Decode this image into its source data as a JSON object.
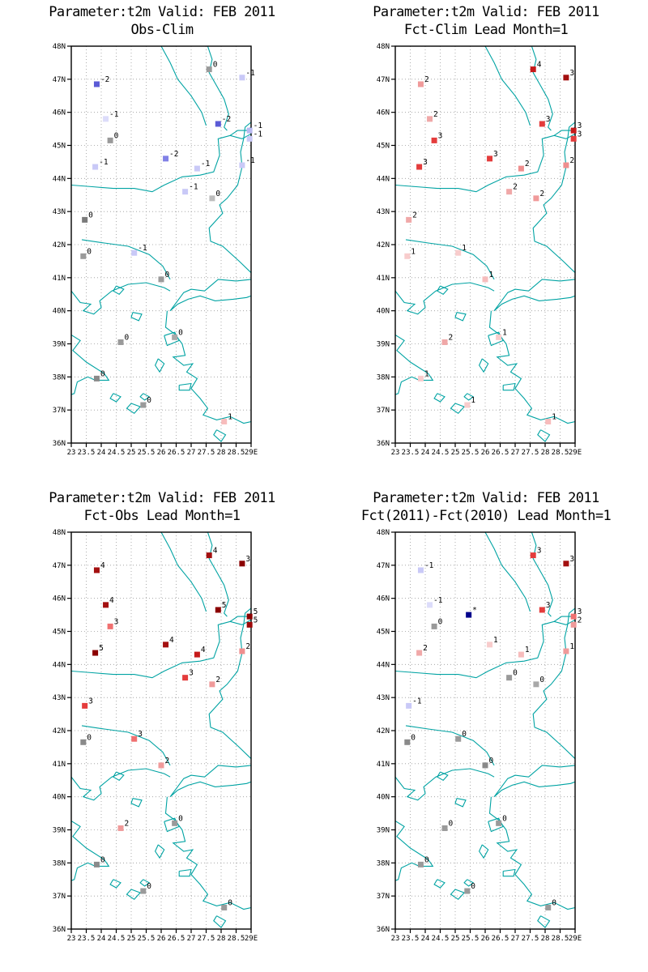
{
  "figure": {
    "background": "#ffffff",
    "map_line_color": "#00a3a3",
    "grid_color": "#999999",
    "frame_color": "#000000"
  },
  "axes": {
    "y_ticks": [
      "48N",
      "47N",
      "46N",
      "45N",
      "44N",
      "43N",
      "42N",
      "41N",
      "40N",
      "39N",
      "38N",
      "37N",
      "36N"
    ],
    "x_ticks": [
      "23",
      "23.5",
      "24",
      "24.5",
      "25",
      "25.5",
      "26",
      "26.5",
      "27",
      "27.5",
      "28",
      "28.5",
      "29E"
    ],
    "lon_range": [
      23,
      29
    ],
    "lat_range": [
      36,
      48
    ]
  },
  "chart_data": [
    {
      "type": "scatter",
      "title": "Parameter:t2m Valid: FEB 2011",
      "subtitle": "Obs-Clim",
      "xlim": [
        23,
        29
      ],
      "ylim": [
        36,
        48
      ],
      "points": [
        {
          "lon": 23.85,
          "lat": 46.85,
          "value": "-2",
          "color": "#5b5bd6"
        },
        {
          "lon": 27.6,
          "lat": 47.3,
          "value": "0",
          "color": "#9a9a9a"
        },
        {
          "lon": 28.7,
          "lat": 47.05,
          "value": "-1",
          "color": "#c9c9f7"
        },
        {
          "lon": 24.15,
          "lat": 45.8,
          "value": "-1",
          "color": "#dcdcfa"
        },
        {
          "lon": 24.3,
          "lat": 45.15,
          "value": "0",
          "color": "#9a9a9a"
        },
        {
          "lon": 27.9,
          "lat": 45.65,
          "value": "-2",
          "color": "#5b5bd6"
        },
        {
          "lon": 28.95,
          "lat": 45.45,
          "value": "-1",
          "color": "#b9b9f2"
        },
        {
          "lon": 28.95,
          "lat": 45.2,
          "value": "-1",
          "color": "#c9c9f7"
        },
        {
          "lon": 23.8,
          "lat": 44.35,
          "value": "-1",
          "color": "#c9c9f7"
        },
        {
          "lon": 26.15,
          "lat": 44.6,
          "value": "-2",
          "color": "#8181e6"
        },
        {
          "lon": 27.2,
          "lat": 44.3,
          "value": "-1",
          "color": "#c9c9f7"
        },
        {
          "lon": 28.7,
          "lat": 44.4,
          "value": "-1",
          "color": "#c9c9f7"
        },
        {
          "lon": 26.8,
          "lat": 43.6,
          "value": "-1",
          "color": "#c9c9f7"
        },
        {
          "lon": 27.7,
          "lat": 43.4,
          "value": "0",
          "color": "#bdbdbd"
        },
        {
          "lon": 23.45,
          "lat": 42.75,
          "value": "0",
          "color": "#7a7a7a"
        },
        {
          "lon": 23.4,
          "lat": 41.65,
          "value": "0",
          "color": "#9a9a9a"
        },
        {
          "lon": 25.1,
          "lat": 41.75,
          "value": "-1",
          "color": "#c9c9f7"
        },
        {
          "lon": 26.0,
          "lat": 40.95,
          "value": "0",
          "color": "#9a9a9a"
        },
        {
          "lon": 24.65,
          "lat": 39.05,
          "value": "0",
          "color": "#9a9a9a"
        },
        {
          "lon": 26.45,
          "lat": 39.2,
          "value": "0",
          "color": "#a8a8a8"
        },
        {
          "lon": 23.85,
          "lat": 37.95,
          "value": "0",
          "color": "#8a8a8a"
        },
        {
          "lon": 25.4,
          "lat": 37.15,
          "value": "0",
          "color": "#9a9a9a"
        },
        {
          "lon": 28.1,
          "lat": 36.65,
          "value": "1",
          "color": "#f7bcbc"
        }
      ]
    },
    {
      "type": "scatter",
      "title": "Parameter:t2m Valid: FEB 2011",
      "subtitle": "Fct-Clim Lead Month=1",
      "xlim": [
        23,
        29
      ],
      "ylim": [
        36,
        48
      ],
      "points": [
        {
          "lon": 23.85,
          "lat": 46.85,
          "value": "2",
          "color": "#f09a9a"
        },
        {
          "lon": 27.6,
          "lat": 47.3,
          "value": "4",
          "color": "#c61a1a"
        },
        {
          "lon": 28.7,
          "lat": 47.05,
          "value": "3",
          "color": "#a30f0f"
        },
        {
          "lon": 24.15,
          "lat": 45.8,
          "value": "2",
          "color": "#f0a8a8"
        },
        {
          "lon": 24.3,
          "lat": 45.15,
          "value": "3",
          "color": "#e43c3c"
        },
        {
          "lon": 27.9,
          "lat": 45.65,
          "value": "3",
          "color": "#e43c3c"
        },
        {
          "lon": 28.95,
          "lat": 45.45,
          "value": "3",
          "color": "#c61a1a"
        },
        {
          "lon": 28.95,
          "lat": 45.2,
          "value": "3",
          "color": "#e43c3c"
        },
        {
          "lon": 23.8,
          "lat": 44.35,
          "value": "3",
          "color": "#e43c3c"
        },
        {
          "lon": 26.15,
          "lat": 44.6,
          "value": "3",
          "color": "#e43c3c"
        },
        {
          "lon": 27.2,
          "lat": 44.3,
          "value": "2",
          "color": "#ef8e8e"
        },
        {
          "lon": 28.7,
          "lat": 44.4,
          "value": "2",
          "color": "#ef8e8e"
        },
        {
          "lon": 26.8,
          "lat": 43.6,
          "value": "2",
          "color": "#f0a8a8"
        },
        {
          "lon": 27.7,
          "lat": 43.4,
          "value": "2",
          "color": "#f09a9a"
        },
        {
          "lon": 23.45,
          "lat": 42.75,
          "value": "2",
          "color": "#f0a8a8"
        },
        {
          "lon": 23.4,
          "lat": 41.65,
          "value": "1",
          "color": "#f8cccc"
        },
        {
          "lon": 25.1,
          "lat": 41.75,
          "value": "1",
          "color": "#f8cccc"
        },
        {
          "lon": 26.0,
          "lat": 40.95,
          "value": "1",
          "color": "#f7bcbc"
        },
        {
          "lon": 24.65,
          "lat": 39.05,
          "value": "2",
          "color": "#f0a8a8"
        },
        {
          "lon": 26.45,
          "lat": 39.2,
          "value": "1",
          "color": "#f8cccc"
        },
        {
          "lon": 23.85,
          "lat": 37.95,
          "value": "1",
          "color": "#f8cccc"
        },
        {
          "lon": 25.4,
          "lat": 37.15,
          "value": "1",
          "color": "#f8cccc"
        },
        {
          "lon": 28.1,
          "lat": 36.65,
          "value": "1",
          "color": "#f7bcbc"
        }
      ]
    },
    {
      "type": "scatter",
      "title": "Parameter:t2m Valid: FEB 2011",
      "subtitle": "Fct-Obs Lead Month=1",
      "xlim": [
        23,
        29
      ],
      "ylim": [
        36,
        48
      ],
      "points": [
        {
          "lon": 23.85,
          "lat": 46.85,
          "value": "4",
          "color": "#a30f0f"
        },
        {
          "lon": 27.6,
          "lat": 47.3,
          "value": "4",
          "color": "#a30f0f"
        },
        {
          "lon": 28.7,
          "lat": 47.05,
          "value": "3",
          "color": "#8b0000"
        },
        {
          "lon": 24.15,
          "lat": 45.8,
          "value": "4",
          "color": "#a30f0f"
        },
        {
          "lon": 24.3,
          "lat": 45.15,
          "value": "3",
          "color": "#f07070"
        },
        {
          "lon": 27.9,
          "lat": 45.65,
          "value": "5",
          "color": "#8b0000"
        },
        {
          "lon": 28.95,
          "lat": 45.45,
          "value": "5",
          "color": "#8b0000"
        },
        {
          "lon": 28.95,
          "lat": 45.2,
          "value": "5",
          "color": "#9e0808"
        },
        {
          "lon": 23.8,
          "lat": 44.35,
          "value": "5",
          "color": "#8b0000"
        },
        {
          "lon": 26.15,
          "lat": 44.6,
          "value": "4",
          "color": "#a30f0f"
        },
        {
          "lon": 27.2,
          "lat": 44.3,
          "value": "4",
          "color": "#c61a1a"
        },
        {
          "lon": 28.7,
          "lat": 44.4,
          "value": "2",
          "color": "#ef8e8e"
        },
        {
          "lon": 26.8,
          "lat": 43.6,
          "value": "3",
          "color": "#e43c3c"
        },
        {
          "lon": 27.7,
          "lat": 43.4,
          "value": "2",
          "color": "#f09a9a"
        },
        {
          "lon": 23.45,
          "lat": 42.75,
          "value": "3",
          "color": "#e43c3c"
        },
        {
          "lon": 23.4,
          "lat": 41.65,
          "value": "0",
          "color": "#8a8a8a"
        },
        {
          "lon": 25.1,
          "lat": 41.75,
          "value": "3",
          "color": "#f07070"
        },
        {
          "lon": 26.0,
          "lat": 40.95,
          "value": "2",
          "color": "#f09a9a"
        },
        {
          "lon": 24.65,
          "lat": 39.05,
          "value": "2",
          "color": "#f09a9a"
        },
        {
          "lon": 26.45,
          "lat": 39.2,
          "value": "0",
          "color": "#9a9a9a"
        },
        {
          "lon": 23.85,
          "lat": 37.95,
          "value": "0",
          "color": "#8a8a8a"
        },
        {
          "lon": 25.4,
          "lat": 37.15,
          "value": "0",
          "color": "#9a9a9a"
        },
        {
          "lon": 28.1,
          "lat": 36.65,
          "value": "0",
          "color": "#9a9a9a"
        }
      ]
    },
    {
      "type": "scatter",
      "title": "Parameter:t2m Valid: FEB 2011",
      "subtitle": "Fct(2011)-Fct(2010) Lead Month=1",
      "xlim": [
        23,
        29
      ],
      "ylim": [
        36,
        48
      ],
      "points": [
        {
          "lon": 23.85,
          "lat": 46.85,
          "value": "-1",
          "color": "#c9c9f7"
        },
        {
          "lon": 27.6,
          "lat": 47.3,
          "value": "3",
          "color": "#e43c3c"
        },
        {
          "lon": 28.7,
          "lat": 47.05,
          "value": "3",
          "color": "#a30f0f"
        },
        {
          "lon": 24.15,
          "lat": 45.8,
          "value": "-1",
          "color": "#dcdcfa"
        },
        {
          "lon": 24.3,
          "lat": 45.15,
          "value": "0",
          "color": "#9a9a9a"
        },
        {
          "lon": 25.45,
          "lat": 45.5,
          "value": "*",
          "color": "#00008b"
        },
        {
          "lon": 27.9,
          "lat": 45.65,
          "value": "3",
          "color": "#e43c3c"
        },
        {
          "lon": 28.95,
          "lat": 45.45,
          "value": "3",
          "color": "#f07070"
        },
        {
          "lon": 28.95,
          "lat": 45.2,
          "value": "2",
          "color": "#f09a9a"
        },
        {
          "lon": 23.8,
          "lat": 44.35,
          "value": "2",
          "color": "#f0a8a8"
        },
        {
          "lon": 26.15,
          "lat": 44.6,
          "value": "1",
          "color": "#f8cccc"
        },
        {
          "lon": 27.2,
          "lat": 44.3,
          "value": "1",
          "color": "#f7bcbc"
        },
        {
          "lon": 28.7,
          "lat": 44.4,
          "value": "1",
          "color": "#f09a9a"
        },
        {
          "lon": 26.8,
          "lat": 43.6,
          "value": "0",
          "color": "#9a9a9a"
        },
        {
          "lon": 27.7,
          "lat": 43.4,
          "value": "0",
          "color": "#a8a8a8"
        },
        {
          "lon": 23.45,
          "lat": 42.75,
          "value": "-1",
          "color": "#c9c9f7"
        },
        {
          "lon": 23.4,
          "lat": 41.65,
          "value": "0",
          "color": "#8a8a8a"
        },
        {
          "lon": 25.1,
          "lat": 41.75,
          "value": "0",
          "color": "#9a9a9a"
        },
        {
          "lon": 26.0,
          "lat": 40.95,
          "value": "0",
          "color": "#8a8a8a"
        },
        {
          "lon": 24.65,
          "lat": 39.05,
          "value": "0",
          "color": "#9a9a9a"
        },
        {
          "lon": 26.45,
          "lat": 39.2,
          "value": "0",
          "color": "#9a9a9a"
        },
        {
          "lon": 23.85,
          "lat": 37.95,
          "value": "0",
          "color": "#9a9a9a"
        },
        {
          "lon": 25.4,
          "lat": 37.15,
          "value": "0",
          "color": "#9a9a9a"
        },
        {
          "lon": 28.1,
          "lat": 36.65,
          "value": "0",
          "color": "#9a9a9a"
        }
      ]
    }
  ]
}
